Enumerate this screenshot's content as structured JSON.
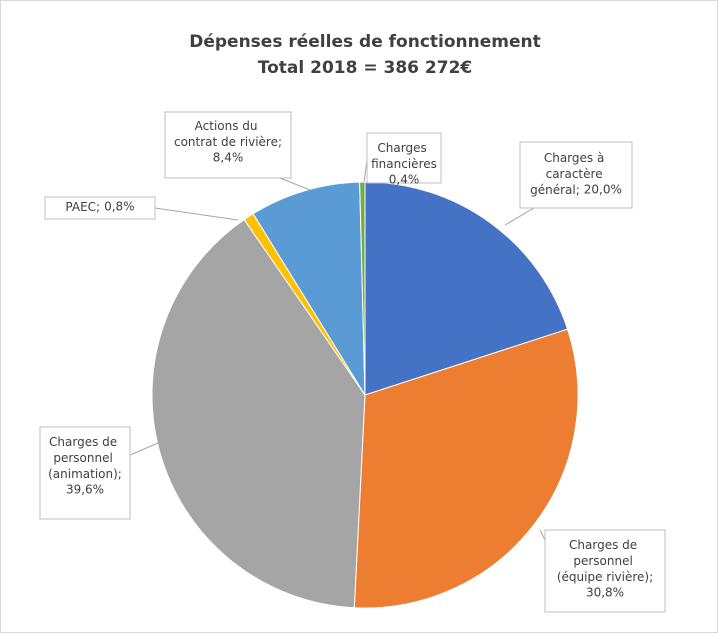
{
  "chart_data": {
    "type": "pie",
    "title": "Dépenses réelles de fonctionnement",
    "subtitle": "Total 2018 = 386 272€",
    "categories": [
      "Charges à caractère général;",
      "Charges de personnel (équipe rivière);",
      "Charges de personnel (animation);",
      "PAEC;",
      "Actions du contrat de rivière;",
      "Charges financières"
    ],
    "values": [
      20.0,
      30.8,
      39.6,
      0.8,
      8.4,
      0.4
    ],
    "value_labels": [
      "20,0%",
      "30,8%",
      "39,6%",
      "0,8%",
      "8,4%",
      "0,4%"
    ],
    "colors": [
      "#4472c4",
      "#ed7d31",
      "#a5a5a5",
      "#ffc000",
      "#5b9bd5",
      "#70ad47"
    ]
  }
}
